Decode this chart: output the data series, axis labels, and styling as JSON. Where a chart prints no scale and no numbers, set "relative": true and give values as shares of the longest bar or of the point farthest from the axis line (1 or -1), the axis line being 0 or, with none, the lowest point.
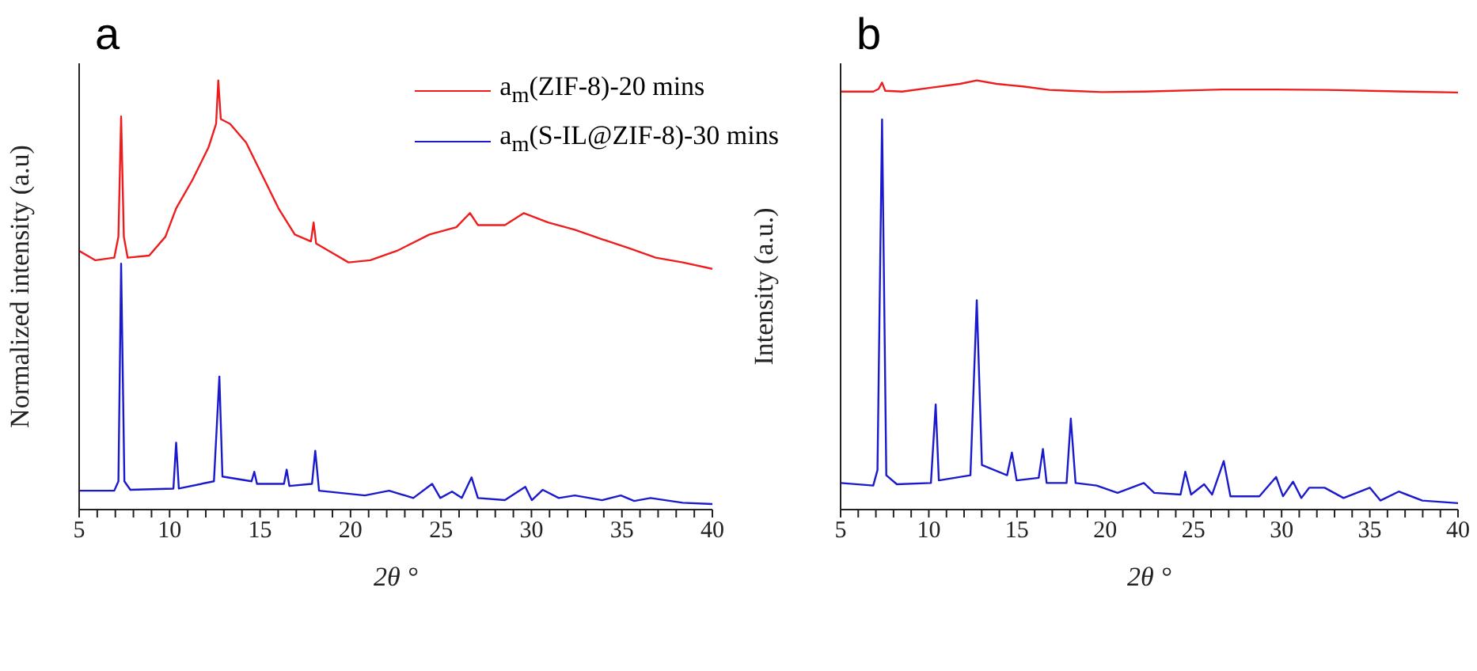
{
  "chart_data": [
    {
      "type": "line",
      "title": "a",
      "xlabel": "2θ °",
      "ylabel": "Normalized intensity (a.u)",
      "relative": true,
      "legend": "top right",
      "marker": "none",
      "line_style": "solid",
      "grid": false,
      "xlim": [
        5,
        40
      ],
      "xticks": [
        5,
        {
          "value": 6,
          "label": null
        },
        {
          "value": 7,
          "label": null
        },
        {
          "value": 8,
          "label": null
        },
        {
          "value": 9,
          "label": null
        },
        10,
        {
          "value": 11,
          "label": null
        },
        {
          "value": 12,
          "label": null
        },
        {
          "value": 13,
          "label": null
        },
        {
          "value": 14,
          "label": null
        },
        15,
        {
          "value": 16,
          "label": null
        },
        {
          "value": 17,
          "label": null
        },
        {
          "value": 18,
          "label": null
        },
        {
          "value": 19,
          "label": null
        },
        20,
        {
          "value": 21,
          "label": null
        },
        {
          "value": 22,
          "label": null
        },
        {
          "value": 23,
          "label": null
        },
        {
          "value": 24,
          "label": null
        },
        25,
        {
          "value": 26,
          "label": null
        },
        {
          "value": 27,
          "label": null
        },
        {
          "value": 28,
          "label": null
        },
        {
          "value": 29,
          "label": null
        },
        30,
        {
          "value": 31,
          "label": null
        },
        {
          "value": 32,
          "label": null
        },
        {
          "value": 33,
          "label": null
        },
        {
          "value": 34,
          "label": null
        },
        35,
        {
          "value": 36,
          "label": null
        },
        {
          "value": 37,
          "label": null
        },
        {
          "value": 38,
          "label": null
        },
        {
          "value": 39,
          "label": null
        },
        40
      ],
      "series": [
        {
          "name": "a$_{m}$(ZIF-8)-20 mins",
          "color": "#ee1c1c",
          "x": [
            5,
            5.9,
            6.94,
            7.17,
            7.32,
            7.47,
            7.68,
            8.87,
            9.77,
            10.36,
            11.26,
            12.15,
            12.57,
            12.69,
            12.83,
            13.34,
            14.23,
            15.13,
            16.02,
            16.92,
            17.81,
            17.96,
            18.1,
            19.0,
            19.89,
            21.09,
            22.57,
            24.36,
            25.85,
            26.6,
            27.04,
            28.53,
            29.58,
            30.92,
            32.4,
            33.9,
            35.39,
            36.87,
            38.36,
            40
          ],
          "values": [
            0.603,
            0.581,
            0.587,
            0.636,
            0.916,
            0.636,
            0.587,
            0.592,
            0.636,
            0.702,
            0.768,
            0.844,
            0.899,
            1.0,
            0.91,
            0.899,
            0.855,
            0.778,
            0.702,
            0.641,
            0.625,
            0.669,
            0.62,
            0.598,
            0.576,
            0.581,
            0.603,
            0.641,
            0.658,
            0.691,
            0.663,
            0.663,
            0.691,
            0.669,
            0.652,
            0.63,
            0.609,
            0.587,
            0.576,
            0.561
          ]
        },
        {
          "name": "a$_{m}$(S-IL@ZIF-8)-30 mins",
          "color": "#1a1acc",
          "x": [
            5,
            6.94,
            7.17,
            7.32,
            7.5,
            7.83,
            10.21,
            10.36,
            10.51,
            12.45,
            12.75,
            12.92,
            14.53,
            14.68,
            14.83,
            16.32,
            16.47,
            16.62,
            17.87,
            18.05,
            18.26,
            20.79,
            22.13,
            23.47,
            24.51,
            24.96,
            25.61,
            26.15,
            26.69,
            27.04,
            28.53,
            29.66,
            30.02,
            30.62,
            31.51,
            32.4,
            33.9,
            34.94,
            35.68,
            36.58,
            38.36,
            40
          ],
          "values": [
            0.044,
            0.044,
            0.066,
            0.573,
            0.066,
            0.046,
            0.049,
            0.156,
            0.049,
            0.066,
            0.31,
            0.077,
            0.066,
            0.088,
            0.06,
            0.06,
            0.093,
            0.055,
            0.06,
            0.137,
            0.044,
            0.033,
            0.044,
            0.027,
            0.06,
            0.027,
            0.042,
            0.027,
            0.075,
            0.027,
            0.022,
            0.053,
            0.022,
            0.046,
            0.027,
            0.033,
            0.022,
            0.033,
            0.02,
            0.027,
            0.016,
            0.013
          ]
        }
      ]
    },
    {
      "type": "line",
      "title": "b",
      "xlabel": "2θ °",
      "ylabel": "Intensity (a.u.)",
      "relative": true,
      "legend": false,
      "marker": "none",
      "line_style": "solid",
      "grid": false,
      "xlim": [
        5,
        40
      ],
      "xticks": [
        5,
        {
          "value": 6,
          "label": null
        },
        {
          "value": 7,
          "label": null
        },
        {
          "value": 8,
          "label": null
        },
        {
          "value": 9,
          "label": null
        },
        10,
        {
          "value": 11,
          "label": null
        },
        {
          "value": 12,
          "label": null
        },
        {
          "value": 13,
          "label": null
        },
        {
          "value": 14,
          "label": null
        },
        15,
        {
          "value": 16,
          "label": null
        },
        {
          "value": 17,
          "label": null
        },
        {
          "value": 18,
          "label": null
        },
        {
          "value": 19,
          "label": null
        },
        20,
        {
          "value": 21,
          "label": null
        },
        {
          "value": 22,
          "label": null
        },
        {
          "value": 23,
          "label": null
        },
        {
          "value": 24,
          "label": null
        },
        25,
        {
          "value": 26,
          "label": null
        },
        {
          "value": 27,
          "label": null
        },
        {
          "value": 28,
          "label": null
        },
        {
          "value": 29,
          "label": null
        },
        30,
        {
          "value": 31,
          "label": null
        },
        {
          "value": 32,
          "label": null
        },
        {
          "value": 33,
          "label": null
        },
        {
          "value": 34,
          "label": null
        },
        35,
        {
          "value": 36,
          "label": null
        },
        {
          "value": 37,
          "label": null
        },
        {
          "value": 38,
          "label": null
        },
        {
          "value": 39,
          "label": null
        },
        40
      ],
      "series": [
        {
          "color": "#ee1c1c",
          "x": [
            5,
            6.85,
            7.15,
            7.35,
            7.53,
            8.49,
            10.27,
            11.76,
            12.72,
            13.85,
            15.34,
            16.83,
            18.02,
            19.81,
            22.19,
            26.66,
            29.64,
            32.61,
            37.08,
            40
          ],
          "values": [
            0.974,
            0.974,
            0.98,
            0.995,
            0.976,
            0.974,
            0.984,
            0.992,
            1.0,
            0.992,
            0.986,
            0.978,
            0.976,
            0.973,
            0.974,
            0.979,
            0.979,
            0.978,
            0.974,
            0.972
          ]
        },
        {
          "color": "#1a1acc",
          "x": [
            5,
            6.85,
            7.09,
            7.35,
            7.59,
            8.19,
            10.12,
            10.39,
            10.57,
            12.36,
            12.72,
            13.01,
            14.44,
            14.71,
            14.98,
            16.23,
            16.47,
            16.68,
            17.81,
            18.05,
            18.32,
            19.51,
            20.7,
            22.19,
            22.78,
            24.27,
            24.54,
            24.87,
            25.61,
            26.06,
            26.72,
            27.1,
            28.74,
            29.69,
            30.08,
            30.65,
            31.12,
            31.57,
            32.44,
            33.51,
            35.0,
            35.6,
            36.64,
            37.98,
            40
          ],
          "values": [
            0.062,
            0.056,
            0.092,
            0.909,
            0.08,
            0.059,
            0.062,
            0.245,
            0.068,
            0.08,
            0.488,
            0.104,
            0.08,
            0.133,
            0.068,
            0.074,
            0.141,
            0.062,
            0.062,
            0.212,
            0.062,
            0.056,
            0.039,
            0.062,
            0.039,
            0.035,
            0.088,
            0.035,
            0.059,
            0.035,
            0.113,
            0.031,
            0.031,
            0.076,
            0.031,
            0.065,
            0.027,
            0.051,
            0.051,
            0.027,
            0.051,
            0.021,
            0.042,
            0.021,
            0.015
          ]
        }
      ]
    }
  ]
}
